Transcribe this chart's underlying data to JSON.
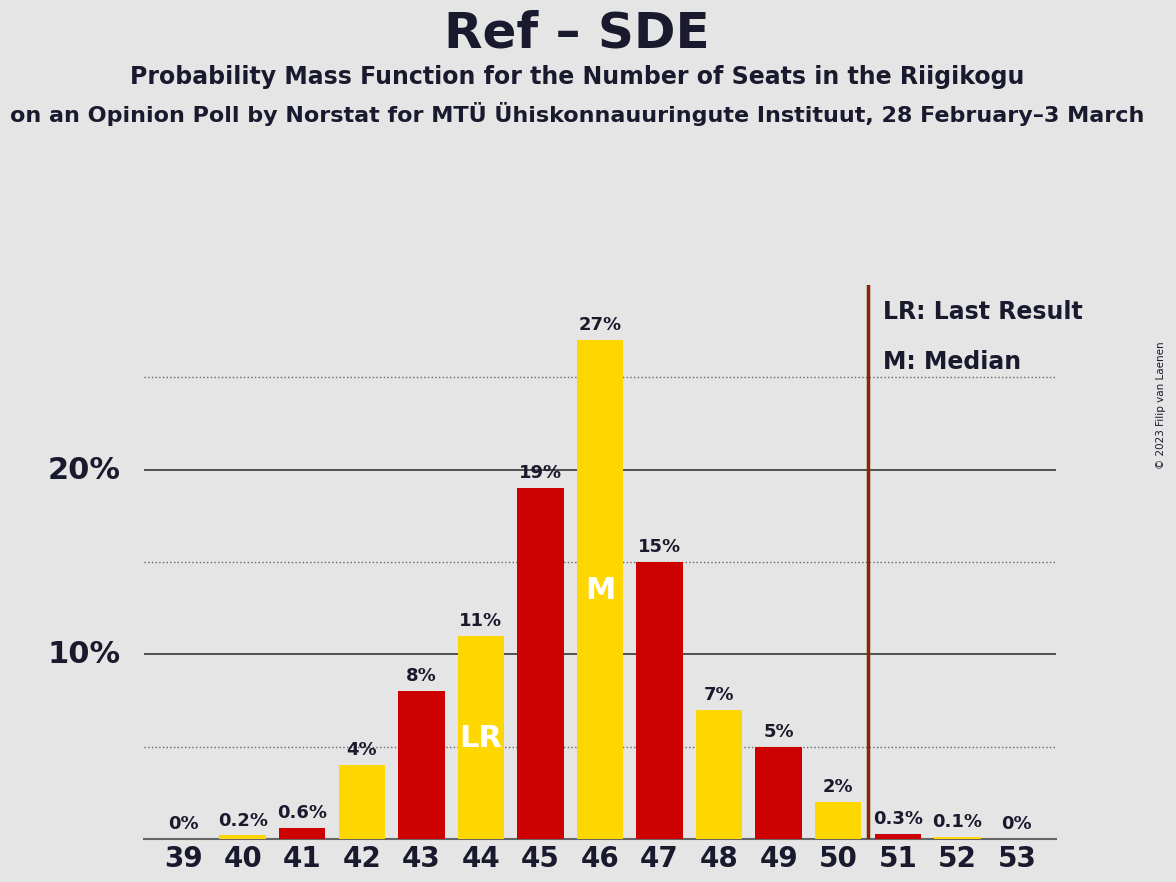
{
  "title": "Ref – SDE",
  "subtitle1": "Probability Mass Function for the Number of Seats in the Riigikogu",
  "subtitle2": "on an Opinion Poll by Norstat for MTÜ Ühiskonnauuringute Instituut, 28 February–3 March",
  "copyright": "© 2023 Filip van Laenen",
  "seats": [
    39,
    40,
    41,
    42,
    43,
    44,
    45,
    46,
    47,
    48,
    49,
    50,
    51,
    52,
    53
  ],
  "bar_values": [
    0.0,
    0.2,
    0.6,
    4.0,
    8.0,
    11.0,
    19.0,
    27.0,
    15.0,
    7.0,
    5.0,
    2.0,
    0.3,
    0.1,
    0.0
  ],
  "bar_colors": [
    "#FFD700",
    "#FFD700",
    "#CC0000",
    "#FFD700",
    "#CC0000",
    "#FFD700",
    "#CC0000",
    "#FFD700",
    "#CC0000",
    "#FFD700",
    "#CC0000",
    "#FFD700",
    "#CC0000",
    "#FFD700",
    "#FFD700"
  ],
  "bar_labels": [
    "0%",
    "0.2%",
    "0.6%",
    "4%",
    "8%",
    "11%",
    "19%",
    "27%",
    "15%",
    "7%",
    "5%",
    "2%",
    "0.3%",
    "0.1%",
    "0%"
  ],
  "inner_labels": [
    "",
    "",
    "",
    "",
    "",
    "LR",
    "",
    "M",
    "",
    "",
    "",
    "",
    "",
    "",
    ""
  ],
  "inner_label_fontsize": 22,
  "yellow_color": "#FFD700",
  "red_color": "#CC0000",
  "bar_width": 0.78,
  "ylim_max": 30,
  "solid_grid": [
    10,
    20
  ],
  "dotted_grid": [
    5,
    15,
    25
  ],
  "lr_line_index": 11.5,
  "background_color": "#E5E5E5",
  "text_color": "#1a1a2e",
  "lr_color": "#8B2500",
  "legend_lr": "LR: Last Result",
  "legend_m": "M: Median",
  "label_fontsize": 13,
  "axis_fontsize": 20,
  "ylabel_fontsize": 22,
  "title_fontsize": 36,
  "subtitle1_fontsize": 17,
  "subtitle2_fontsize": 16,
  "copyright_fontsize": 7.5
}
